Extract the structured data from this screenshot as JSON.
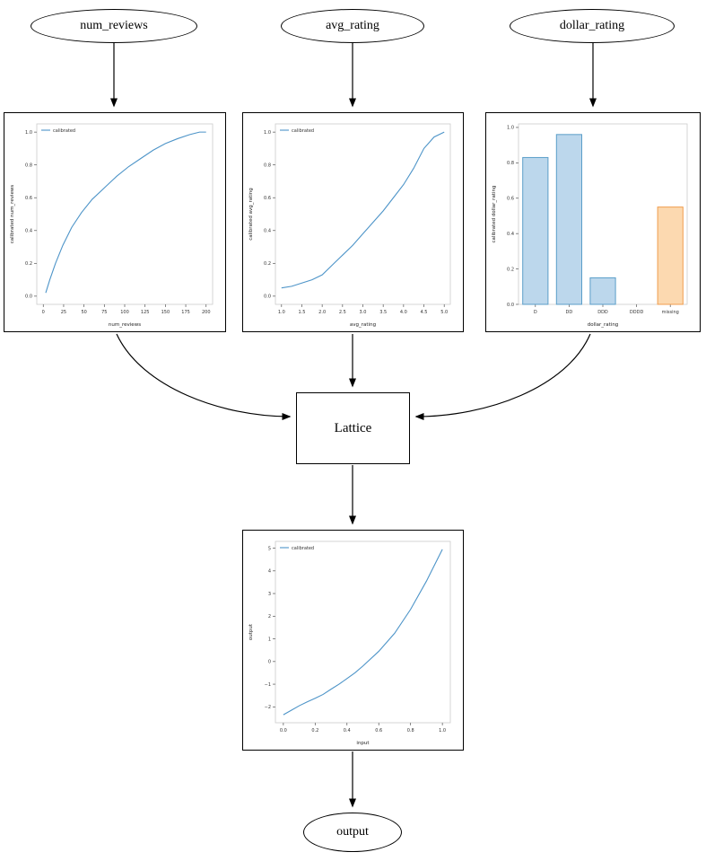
{
  "nodes": {
    "num_reviews": "num_reviews",
    "avg_rating": "avg_rating",
    "dollar_rating": "dollar_rating",
    "lattice": "Lattice",
    "output": "output"
  },
  "colors": {
    "line": "#4d94c8",
    "bar_fill": "#bcd7ec",
    "bar_edge": "#5b9ec9",
    "missing_fill": "#fcd9b0",
    "missing_edge": "#f09d4e",
    "edge_stroke": "#000000"
  },
  "chart_data": [
    {
      "id": "num_reviews",
      "type": "line",
      "title": "",
      "xlabel": "num_reviews",
      "ylabel": "calibrated num_reviews",
      "legend": [
        "calibrated"
      ],
      "xlim": [
        -8,
        208
      ],
      "ylim": [
        -0.05,
        1.05
      ],
      "xticks": [
        0,
        25,
        50,
        75,
        100,
        125,
        150,
        175,
        200
      ],
      "xtick_labels": [
        "0",
        "25",
        "50",
        "75",
        "100",
        "125",
        "150",
        "175",
        "200"
      ],
      "yticks": [
        0.0,
        0.2,
        0.4,
        0.6,
        0.8,
        1.0
      ],
      "ytick_labels": [
        "0.0",
        "0.2",
        "0.4",
        "0.6",
        "0.8",
        "1.0"
      ],
      "x": [
        3,
        8,
        15,
        24,
        35,
        47,
        60,
        75,
        90,
        105,
        120,
        135,
        150,
        165,
        180,
        192,
        200
      ],
      "y": [
        0.02,
        0.1,
        0.2,
        0.31,
        0.42,
        0.51,
        0.59,
        0.66,
        0.73,
        0.79,
        0.84,
        0.89,
        0.93,
        0.96,
        0.985,
        1.0,
        1.0
      ]
    },
    {
      "id": "avg_rating",
      "type": "line",
      "title": "",
      "xlabel": "avg_rating",
      "ylabel": "calibrated avg_rating",
      "legend": [
        "calibrated"
      ],
      "xlim": [
        0.85,
        5.15
      ],
      "ylim": [
        -0.05,
        1.05
      ],
      "xticks": [
        1.0,
        1.5,
        2.0,
        2.5,
        3.0,
        3.5,
        4.0,
        4.5,
        5.0
      ],
      "xtick_labels": [
        "1.0",
        "1.5",
        "2.0",
        "2.5",
        "3.0",
        "3.5",
        "4.0",
        "4.5",
        "5.0"
      ],
      "yticks": [
        0.0,
        0.2,
        0.4,
        0.6,
        0.8,
        1.0
      ],
      "ytick_labels": [
        "0.0",
        "0.2",
        "0.4",
        "0.6",
        "0.8",
        "1.0"
      ],
      "x": [
        1.0,
        1.25,
        1.5,
        1.75,
        2.0,
        2.25,
        2.5,
        2.75,
        3.0,
        3.25,
        3.5,
        3.75,
        4.0,
        4.25,
        4.5,
        4.75,
        5.0
      ],
      "y": [
        0.05,
        0.06,
        0.08,
        0.1,
        0.13,
        0.19,
        0.25,
        0.31,
        0.38,
        0.45,
        0.52,
        0.6,
        0.68,
        0.78,
        0.9,
        0.97,
        1.0
      ]
    },
    {
      "id": "dollar_rating",
      "type": "bar",
      "title": "",
      "xlabel": "dollar_rating",
      "ylabel": "calibrated dollar_rating",
      "categories": [
        "D",
        "DD",
        "DDD",
        "DDDD",
        "missing"
      ],
      "values": [
        0.83,
        0.96,
        0.15,
        0.0,
        0.55
      ],
      "bar_colors": [
        "blue",
        "blue",
        "blue",
        "blue",
        "orange"
      ],
      "ylim": [
        0,
        1.02
      ],
      "yticks": [
        0.0,
        0.2,
        0.4,
        0.6,
        0.8,
        1.0
      ],
      "ytick_labels": [
        "0.0",
        "0.2",
        "0.4",
        "0.6",
        "0.8",
        "1.0"
      ]
    },
    {
      "id": "output",
      "type": "line",
      "title": "",
      "xlabel": "input",
      "ylabel": "output",
      "legend": [
        "calibrated"
      ],
      "xlim": [
        -0.05,
        1.05
      ],
      "ylim": [
        -2.7,
        5.3
      ],
      "xticks": [
        0.0,
        0.2,
        0.4,
        0.6,
        0.8,
        1.0
      ],
      "xtick_labels": [
        "0.0",
        "0.2",
        "0.4",
        "0.6",
        "0.8",
        "1.0"
      ],
      "yticks": [
        -2,
        -1,
        0,
        1,
        2,
        3,
        4,
        5
      ],
      "ytick_labels": [
        "−2",
        "−1",
        "0",
        "1",
        "2",
        "3",
        "4",
        "5"
      ],
      "x": [
        0.0,
        0.05,
        0.1,
        0.15,
        0.2,
        0.25,
        0.3,
        0.35,
        0.4,
        0.45,
        0.5,
        0.6,
        0.7,
        0.8,
        0.9,
        1.0
      ],
      "y": [
        -2.35,
        -2.15,
        -1.95,
        -1.78,
        -1.62,
        -1.45,
        -1.22,
        -1.0,
        -0.75,
        -0.5,
        -0.2,
        0.45,
        1.25,
        2.3,
        3.55,
        4.95
      ]
    }
  ]
}
